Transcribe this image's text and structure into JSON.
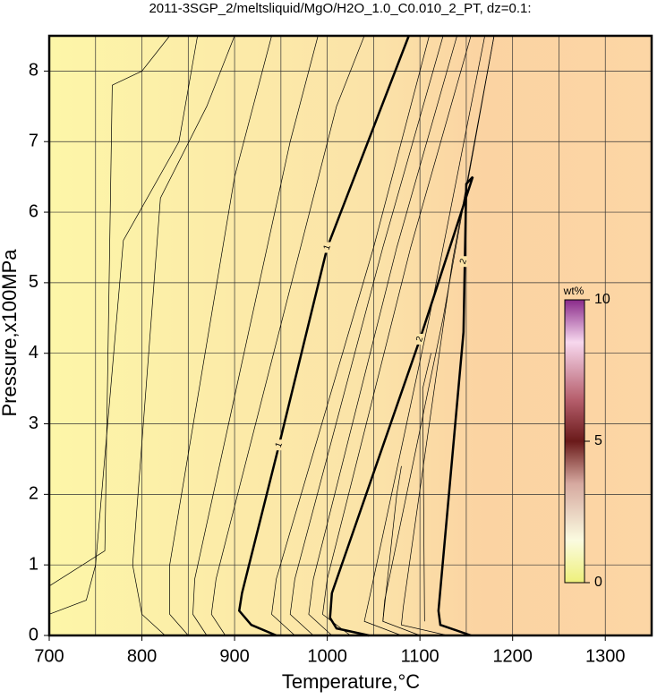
{
  "chart_data": {
    "type": "contour",
    "title": "2011-3SGP_2/meltsliquid/MgO/H2O_1.0_C0.010_2_PT, dz=0.1:",
    "xlabel": "Temperature,°C",
    "ylabel": "Pressure,x100MPa",
    "xlim": [
      700,
      1350
    ],
    "ylim": [
      0,
      8.5
    ],
    "xticks": [
      700,
      800,
      900,
      1000,
      1100,
      1200,
      1300
    ],
    "yticks": [
      0,
      1,
      2,
      3,
      4,
      5,
      6,
      7,
      8
    ],
    "xgrid": [
      750,
      850,
      950,
      1050,
      1150,
      1250
    ],
    "grid": true,
    "contours": [
      {
        "label": "1",
        "bold": true,
        "x": [
          945,
          918,
          905,
          908,
          948,
          1000,
          1088
        ],
        "y": [
          0,
          0.15,
          0.35,
          0.6,
          2.7,
          5.5,
          8.5
        ],
        "label_x": [
          948,
          1000
        ],
        "label_y": [
          2.7,
          5.5
        ]
      },
      {
        "label": "2",
        "bold": true,
        "x": [
          1045,
          1010,
          1003,
          1005,
          1100,
          1157,
          1150,
          1147,
          1120,
          1122,
          1155
        ],
        "y": [
          0,
          0.1,
          0.25,
          0.6,
          4.2,
          6.5,
          6.4,
          4.3,
          0.35,
          0.15,
          0
        ],
        "label_x": [
          1100,
          1147
        ],
        "label_y": [
          4.2,
          5.3
        ]
      },
      {
        "x": [
          700,
          760,
          768,
          800,
          830
        ],
        "y": [
          0.7,
          1.2,
          7.8,
          8.0,
          8.5
        ]
      },
      {
        "x": [
          700,
          740,
          750,
          780,
          840,
          860
        ],
        "y": [
          0.3,
          0.5,
          1.0,
          5.6,
          7.0,
          8.5
        ]
      },
      {
        "x": [
          825,
          800,
          790,
          820,
          870,
          900
        ],
        "y": [
          0,
          0.3,
          1.0,
          6.2,
          7.5,
          8.5
        ]
      },
      {
        "x": [
          850,
          830,
          830,
          900,
          940
        ],
        "y": [
          0,
          0.3,
          1.0,
          6.5,
          8.5
        ]
      },
      {
        "x": [
          870,
          855,
          857,
          960,
          990
        ],
        "y": [
          0,
          0.3,
          0.8,
          7.0,
          8.5
        ]
      },
      {
        "x": [
          890,
          875,
          880,
          1010,
          1040
        ],
        "y": [
          0,
          0.3,
          0.8,
          7.5,
          8.5
        ]
      },
      {
        "x": [
          965,
          940,
          945,
          1050,
          1110
        ],
        "y": [
          0,
          0.3,
          0.8,
          5.5,
          8.5
        ]
      },
      {
        "x": [
          985,
          960,
          965,
          1060,
          1125
        ],
        "y": [
          0,
          0.3,
          0.8,
          5.5,
          8.5
        ]
      },
      {
        "x": [
          1005,
          980,
          985,
          1075,
          1140
        ],
        "y": [
          0,
          0.3,
          0.8,
          5.5,
          8.5
        ]
      },
      {
        "x": [
          1025,
          995,
          1000,
          1090,
          1155
        ],
        "y": [
          0,
          0.3,
          0.8,
          5.5,
          8.5
        ]
      },
      {
        "x": [
          1080,
          1040,
          1045,
          1110,
          1170
        ],
        "y": [
          0,
          0.2,
          0.5,
          4.5,
          8.5
        ]
      },
      {
        "x": [
          1100,
          1060,
          1062,
          1125,
          1180
        ],
        "y": [
          0,
          0.2,
          0.5,
          4.5,
          8.5
        ]
      },
      {
        "x": [
          1130,
          1080,
          1082,
          1135,
          1180
        ],
        "y": [
          0,
          0.15,
          0.4,
          5.3,
          8.5
        ]
      },
      {
        "x": [
          1105,
          1103,
          1112
        ],
        "y": [
          0.2,
          3.5,
          4.0
        ]
      },
      {
        "x": [
          1060,
          1075,
          1080
        ],
        "y": [
          0.2,
          2.0,
          2.4
        ]
      }
    ],
    "colorbar": {
      "label": "wt%",
      "lim": [
        0,
        10
      ],
      "ticks": [
        0,
        5,
        10
      ]
    }
  }
}
